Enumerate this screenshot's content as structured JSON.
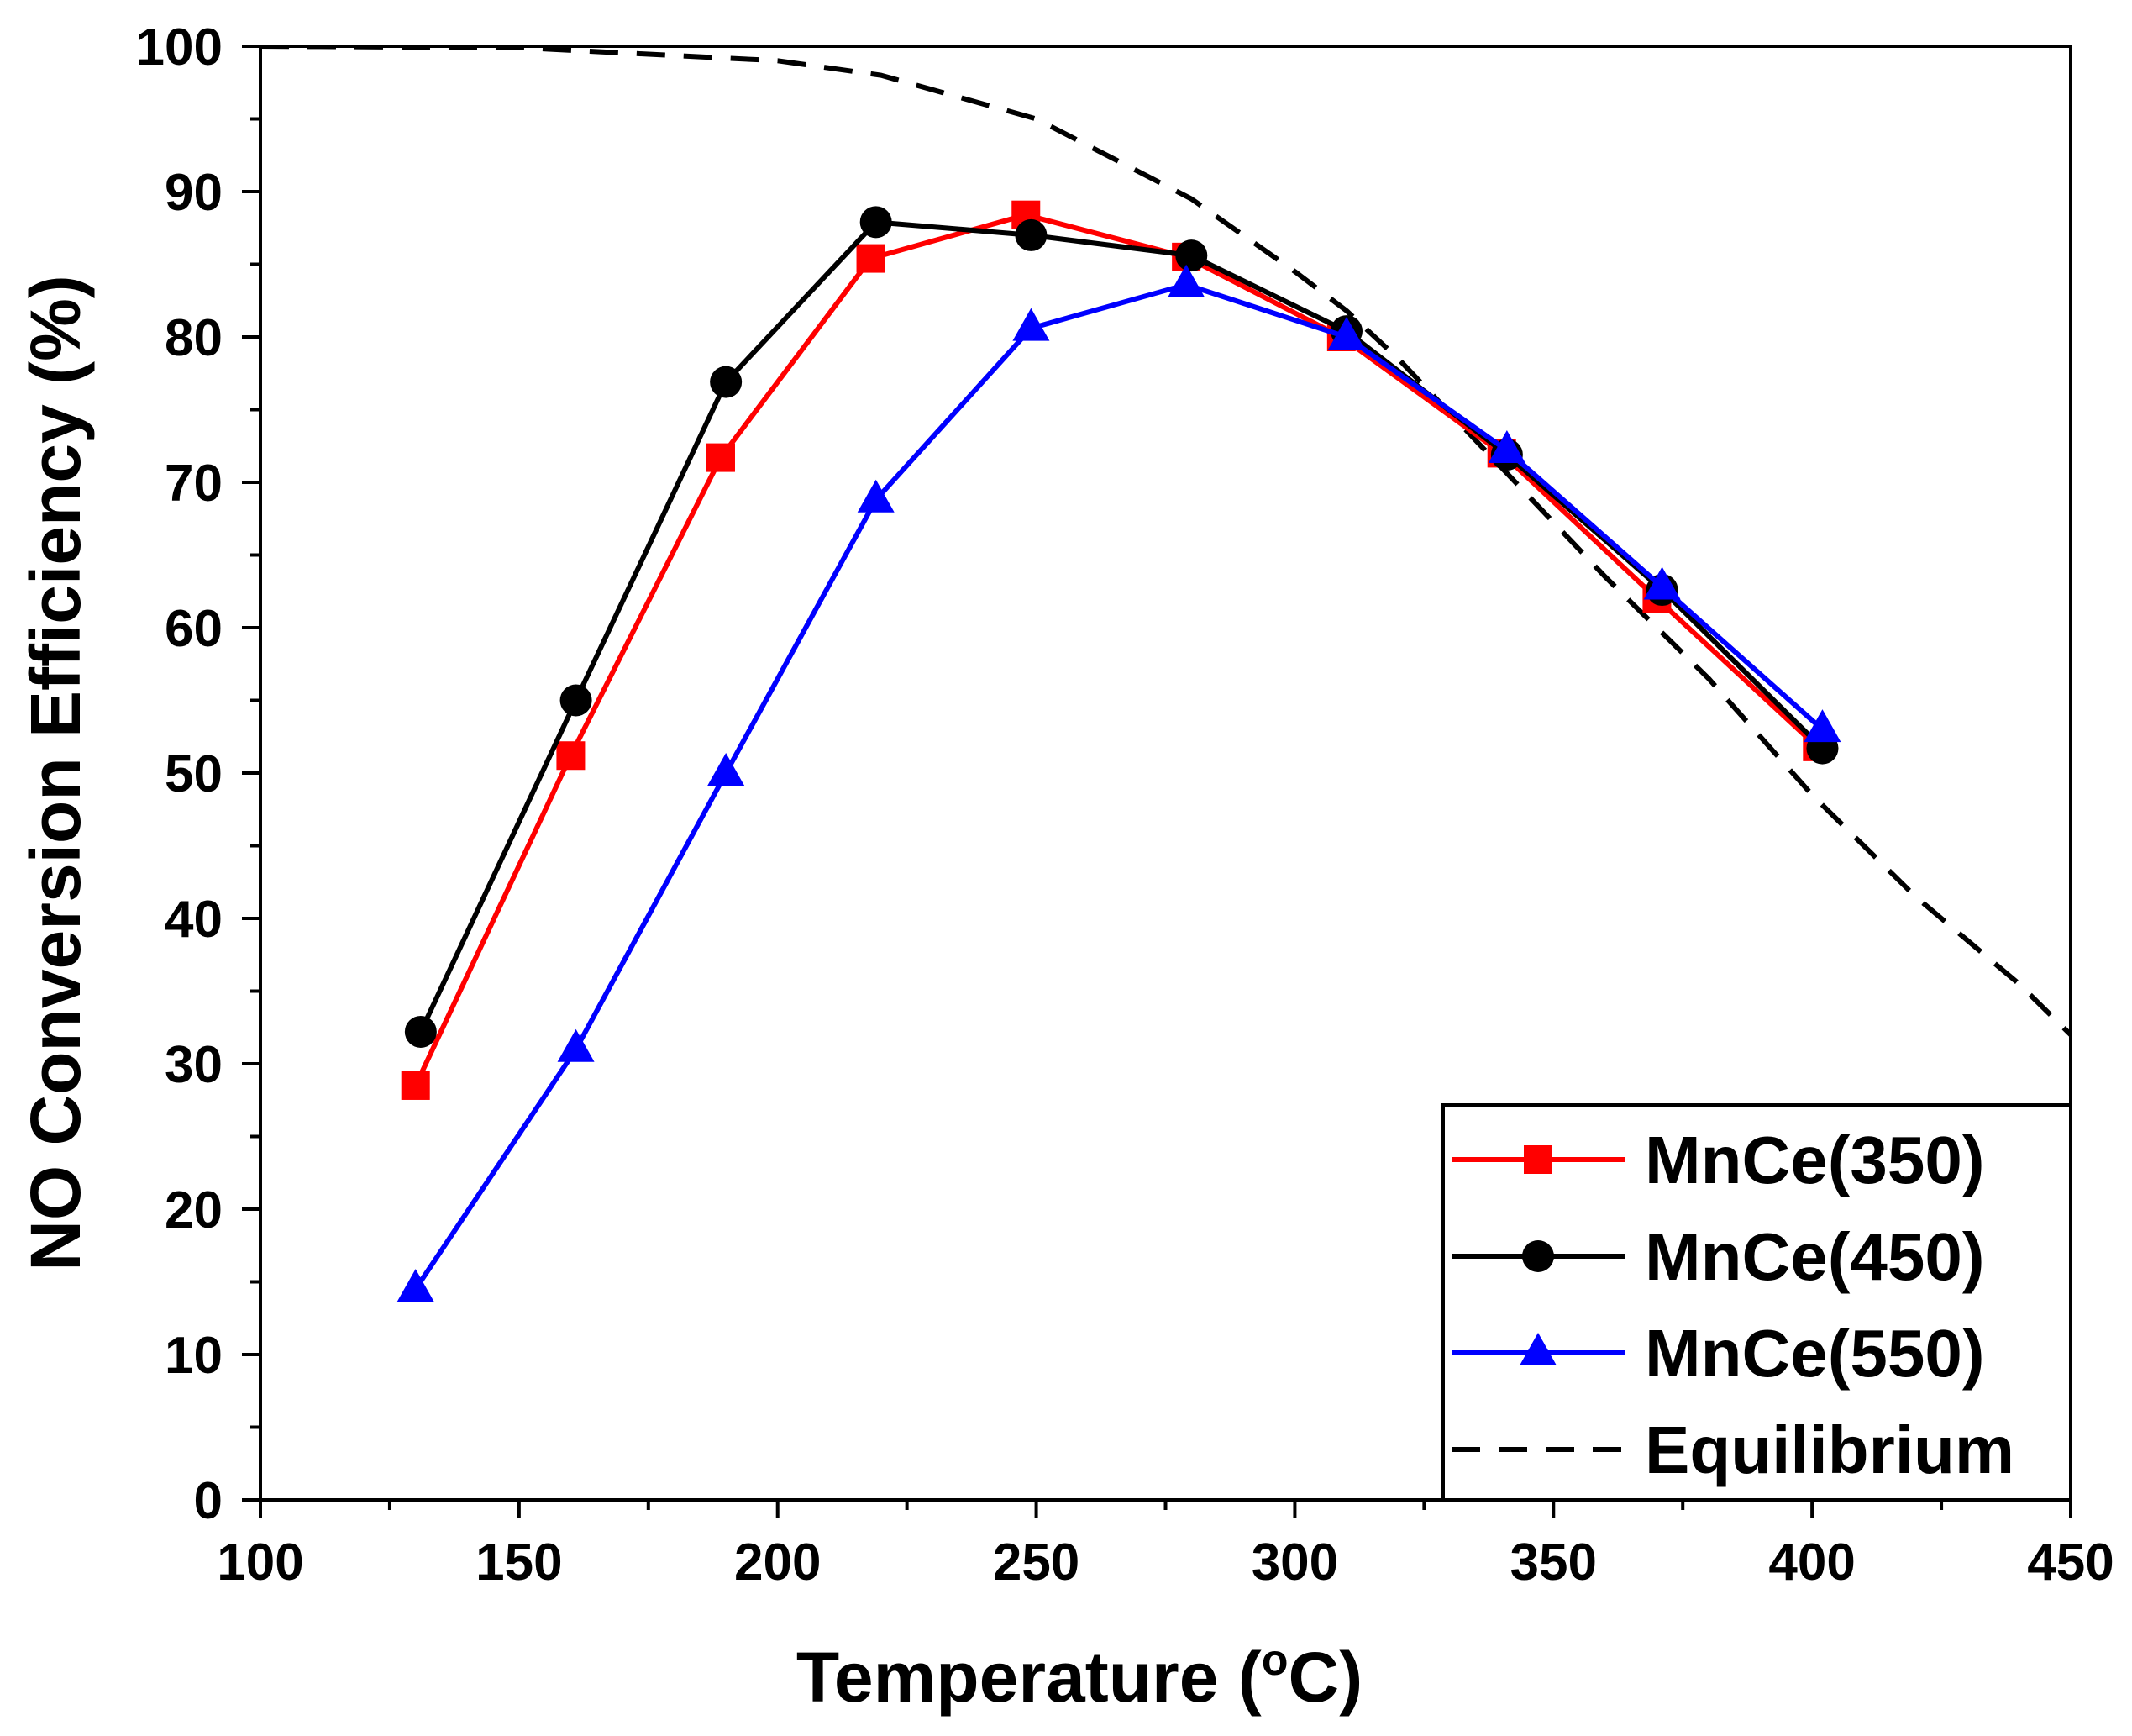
{
  "chart_data": {
    "type": "line",
    "title": "",
    "xlabel": "Temperature",
    "xlabel_unit_prefix": "o",
    "xlabel_unit": "C",
    "ylabel": "NO Conversion Efficiency (%)",
    "xlim": [
      100,
      450
    ],
    "ylim": [
      0,
      100
    ],
    "xticks": [
      100,
      150,
      200,
      250,
      300,
      350,
      400,
      450
    ],
    "yticks": [
      0,
      10,
      20,
      30,
      40,
      50,
      60,
      70,
      80,
      90,
      100
    ],
    "grid": false,
    "legend_position": "bottom-right",
    "series": [
      {
        "name": "MnCe(350)",
        "color": "#ff0000",
        "marker": "square",
        "line_style": "solid",
        "x": [
          130,
          160,
          189,
          218,
          248,
          279,
          309,
          340,
          370,
          401
        ],
        "y": [
          28.5,
          51.2,
          71.7,
          85.4,
          88.4,
          85.5,
          80.0,
          72.0,
          62.0,
          51.8
        ]
      },
      {
        "name": "MnCe(450)",
        "color": "#000000",
        "marker": "circle",
        "line_style": "solid",
        "x": [
          131,
          161,
          190,
          219,
          249,
          280,
          310,
          341,
          371,
          402
        ],
        "y": [
          32.2,
          55.0,
          76.9,
          87.9,
          87.0,
          85.6,
          80.4,
          71.9,
          62.6,
          51.7
        ]
      },
      {
        "name": "MnCe(550)",
        "color": "#0000ff",
        "marker": "triangle",
        "line_style": "solid",
        "x": [
          130,
          161,
          190,
          219,
          249,
          279,
          310,
          341,
          371,
          402
        ],
        "y": [
          14.5,
          31.0,
          50.0,
          68.8,
          80.6,
          83.6,
          80.0,
          72.2,
          62.8,
          53.0
        ]
      },
      {
        "name": "Equilibrium",
        "color": "#000000",
        "marker": "none",
        "line_style": "dashed",
        "x": [
          100,
          150,
          200,
          220,
          250,
          280,
          300,
          310,
          320,
          340,
          360,
          380,
          400,
          420,
          440,
          450
        ],
        "y": [
          100,
          99.9,
          99.0,
          98.0,
          95.0,
          89.5,
          84.5,
          81.8,
          78.5,
          71.0,
          63.5,
          56.5,
          48.5,
          41.5,
          35.5,
          32.0
        ]
      }
    ]
  }
}
